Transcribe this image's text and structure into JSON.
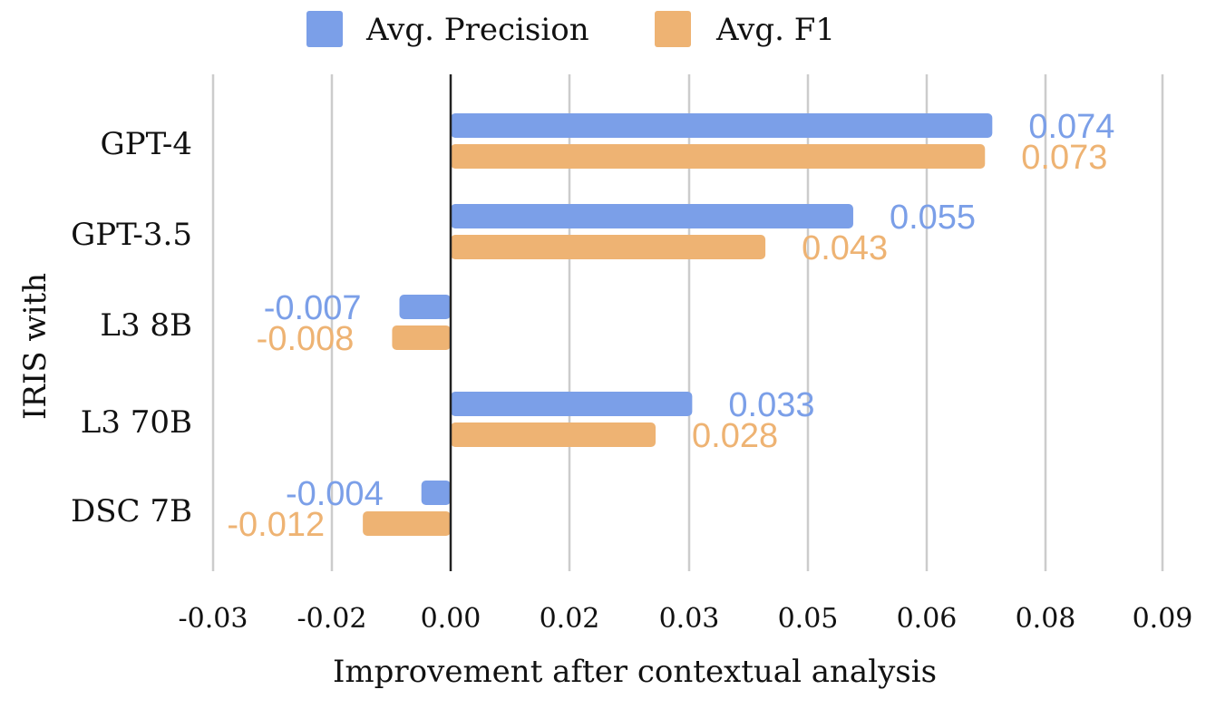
{
  "chart_data": {
    "type": "bar",
    "orientation": "horizontal",
    "categories": [
      "GPT-4",
      "GPT-3.5",
      "L3 8B",
      "L3 70B",
      "DSC 7B"
    ],
    "series": [
      {
        "name": "Avg. Precision",
        "color": "#7b9fe8",
        "values": [
          0.074,
          0.055,
          -0.007,
          0.033,
          -0.004
        ]
      },
      {
        "name": "Avg. F1",
        "color": "#eeb373",
        "values": [
          0.073,
          0.043,
          -0.008,
          0.028,
          -0.012
        ]
      }
    ],
    "data_labels": [
      [
        "0.074",
        "0.055",
        "-0.007",
        "0.033",
        "-0.004"
      ],
      [
        "0.073",
        "0.043",
        "-0.008",
        "0.028",
        "-0.012"
      ]
    ],
    "xlabel": "Improvement after contextual analysis",
    "ylabel": "IRIS with",
    "xticks": [
      -0.03,
      -0.02,
      0.0,
      0.02,
      0.03,
      0.05,
      0.06,
      0.08,
      0.09
    ],
    "xtick_labels": [
      "-0.03",
      "-0.02",
      "0.00",
      "0.02",
      "0.03",
      "0.05",
      "0.06",
      "0.08",
      "0.09"
    ],
    "xlim": [
      -0.02,
      0.08
    ],
    "grid": true,
    "legend_position": "top"
  }
}
